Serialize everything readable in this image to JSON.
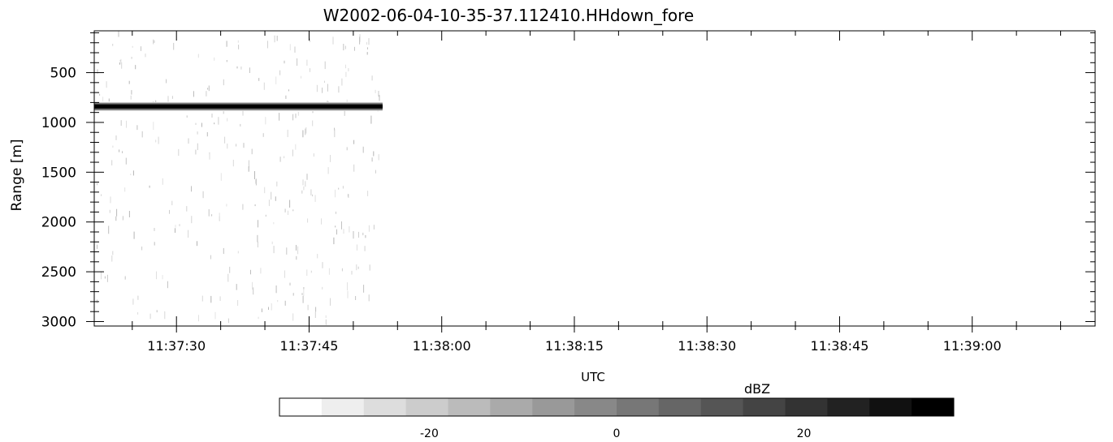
{
  "chart_data": {
    "type": "heatmap",
    "title": "W2002-06-04-10-35-37.112410.HHdown_fore",
    "xlabel": "UTC",
    "ylabel": "Range [m]",
    "x_tick_labels": [
      "11:37:30",
      "11:37:45",
      "11:38:00",
      "11:38:15",
      "11:38:30",
      "11:38:45",
      "11:39:00"
    ],
    "x_tick_seconds": [
      30,
      45,
      60,
      75,
      90,
      105,
      120
    ],
    "x_range_seconds": [
      20.7,
      133.9
    ],
    "data_end_seconds": 53.3,
    "y_ticks": [
      500,
      1000,
      1500,
      2000,
      2500,
      3000
    ],
    "y_range": [
      80,
      3045
    ],
    "y_reversed": true,
    "band": {
      "center_m": 840,
      "half_width_m": 45,
      "peak_dbz": 34
    },
    "colorbar": {
      "label": "dBZ",
      "range": [
        -36,
        36
      ],
      "tick_values": [
        -20,
        0,
        20
      ],
      "tick_labels": [
        "-20",
        "0",
        "20"
      ],
      "n_steps": 16,
      "colormap": "grayscale white-to-black"
    }
  }
}
